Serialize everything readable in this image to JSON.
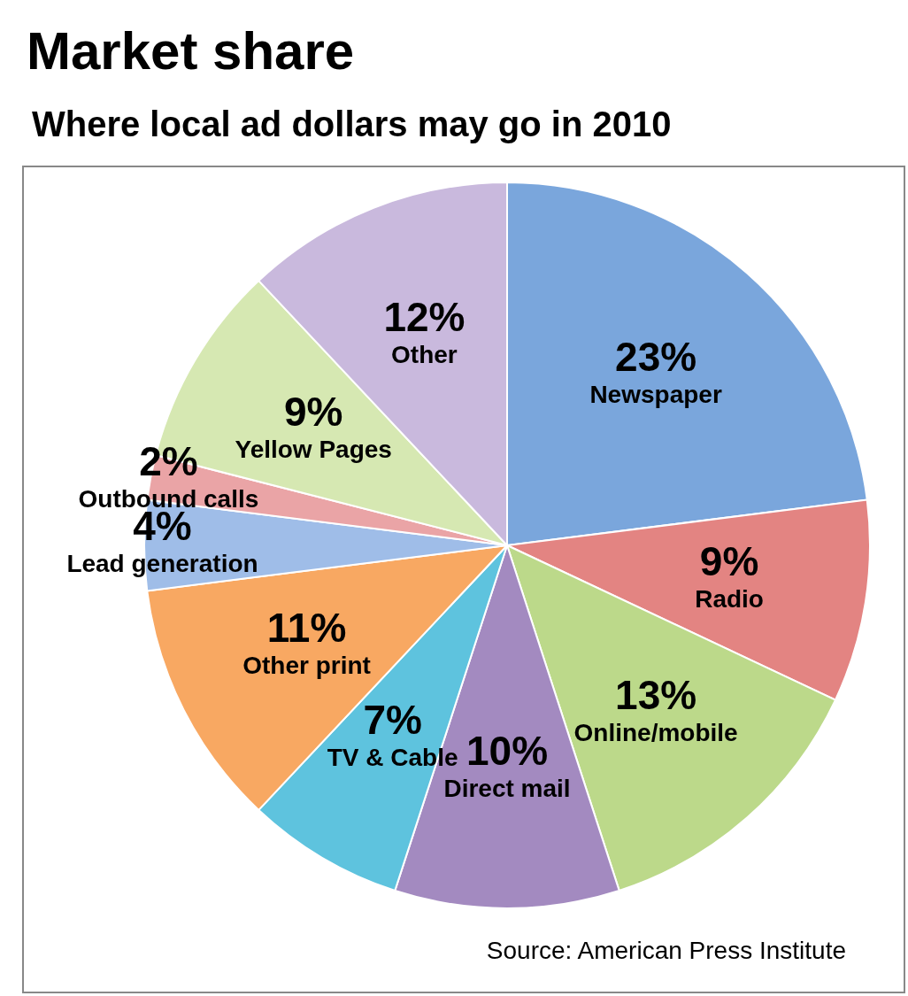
{
  "chart_data": {
    "type": "pie",
    "title": "Market share",
    "subtitle": "Where local ad dollars may go in 2010",
    "categories": [
      "Newspaper",
      "Radio",
      "Online/mobile",
      "Direct mail",
      "TV & Cable",
      "Other print",
      "Lead generation",
      "Outbound calls",
      "Yellow Pages",
      "Other"
    ],
    "values": [
      23,
      9,
      13,
      10,
      7,
      11,
      4,
      2,
      9,
      12
    ],
    "colors": [
      "#7aa6dc",
      "#e38482",
      "#bcd98a",
      "#a38ac0",
      "#5ec3de",
      "#f8a862",
      "#9fbde8",
      "#eaa4a6",
      "#d6e8b2",
      "#c9b9dd"
    ],
    "value_labels": [
      "23%",
      "9%",
      "13%",
      "10%",
      "7%",
      "11%",
      "4%",
      "2%",
      "9%",
      "12%"
    ],
    "annotations": [
      "Source: American Press Institute"
    ]
  }
}
